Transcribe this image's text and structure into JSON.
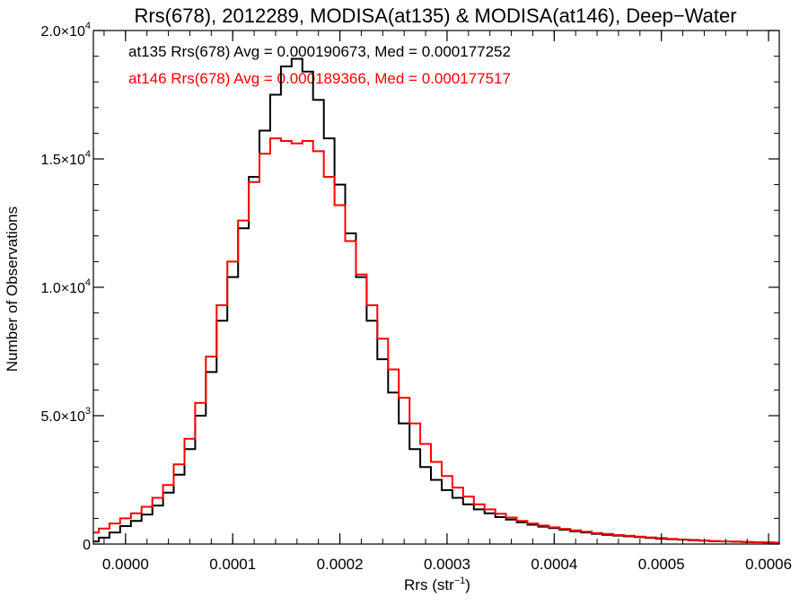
{
  "chart_data": {
    "type": "line",
    "title": "Rrs(678), 2012289, MODISA(at135) & MODISA(at146), Deep−Water",
    "xlabel": "Rrs (str",
    "xlabel_sup": "−1",
    "xlabel_end": ")",
    "ylabel": "Number of Observations",
    "xlim": [
      -3e-05,
      0.00061
    ],
    "ylim": [
      0,
      20000
    ],
    "x_ticks": [
      0.0,
      0.0001,
      0.0002,
      0.0003,
      0.0004,
      0.0005,
      0.0006
    ],
    "x_tick_labels": [
      "0.0000",
      "0.0001",
      "0.0002",
      "0.0003",
      "0.0004",
      "0.0005",
      "0.0006"
    ],
    "y_ticks": [
      0,
      5000,
      10000,
      15000,
      20000
    ],
    "y_tick_labels": [
      {
        "base": "0",
        "sup": ""
      },
      {
        "base": "5.0×10",
        "sup": "3"
      },
      {
        "base": "1.0×10",
        "sup": "4"
      },
      {
        "base": "1.5×10",
        "sup": "4"
      },
      {
        "base": "2.0×10",
        "sup": "4"
      }
    ],
    "x": [
      -3e-05,
      -2e-05,
      -1e-05,
      0.0,
      1e-05,
      2e-05,
      3e-05,
      4e-05,
      5e-05,
      6e-05,
      7e-05,
      8e-05,
      9e-05,
      0.0001,
      0.00011,
      0.00012,
      0.00013,
      0.00014,
      0.00015,
      0.00016,
      0.00017,
      0.00018,
      0.00019,
      0.0002,
      0.00021,
      0.00022,
      0.00023,
      0.00024,
      0.00025,
      0.00026,
      0.00027,
      0.00028,
      0.00029,
      0.0003,
      0.00031,
      0.00032,
      0.00033,
      0.00034,
      0.00035,
      0.00036,
      0.00037,
      0.00038,
      0.00039,
      0.0004,
      0.00041,
      0.00042,
      0.00043,
      0.00044,
      0.00045,
      0.00046,
      0.00047,
      0.00048,
      0.00049,
      0.0005,
      0.00051,
      0.00052,
      0.00053,
      0.00054,
      0.00055,
      0.00056,
      0.00057,
      0.00058,
      0.00059,
      0.0006,
      0.00061
    ],
    "series": [
      {
        "name": "at135",
        "color": "#000000",
        "values": [
          100,
          250,
          450,
          700,
          900,
          1150,
          1500,
          2000,
          2700,
          3700,
          5000,
          6700,
          8700,
          10400,
          12300,
          14300,
          16100,
          17500,
          18600,
          18900,
          18400,
          17300,
          15800,
          14000,
          12100,
          10400,
          8700,
          7200,
          5900,
          4700,
          3700,
          3000,
          2500,
          2100,
          1800,
          1550,
          1350,
          1200,
          1050,
          950,
          850,
          750,
          680,
          620,
          560,
          500,
          450,
          400,
          360,
          330,
          300,
          270,
          240,
          210,
          190,
          170,
          150,
          130,
          110,
          100,
          90,
          80,
          70,
          60,
          50
        ]
      },
      {
        "name": "at146",
        "color": "#ff0000",
        "values": [
          450,
          600,
          800,
          1000,
          1200,
          1450,
          1800,
          2300,
          3100,
          4100,
          5500,
          7300,
          9300,
          11000,
          12600,
          14100,
          15200,
          15800,
          15700,
          15600,
          15700,
          15300,
          14300,
          13200,
          11800,
          10500,
          9300,
          8000,
          6800,
          5700,
          4700,
          3900,
          3200,
          2650,
          2200,
          1850,
          1550,
          1350,
          1180,
          1030,
          900,
          800,
          720,
          650,
          590,
          530,
          480,
          430,
          390,
          350,
          320,
          290,
          260,
          230,
          200,
          180,
          160,
          140,
          120,
          105,
          95,
          85,
          75,
          65,
          55
        ]
      }
    ],
    "annotations": [
      {
        "text": "at135 Rrs(678) Avg = 0.000190673, Med = 0.000177252",
        "color": "#000000"
      },
      {
        "text": "at146 Rrs(678) Avg = 0.000189366, Med = 0.000177517",
        "color": "#ff0000"
      }
    ]
  }
}
